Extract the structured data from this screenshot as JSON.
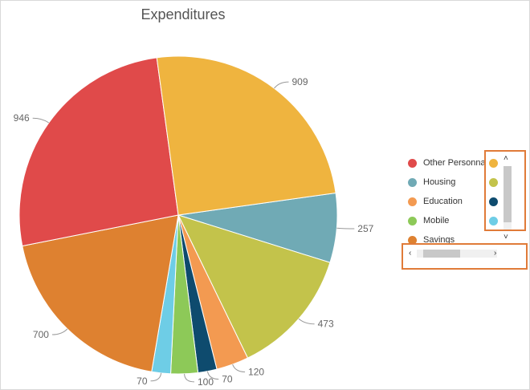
{
  "chart_data": {
    "type": "pie",
    "title": "Expenditures",
    "start_angle_deg": -8,
    "direction": "clockwise",
    "slices": [
      {
        "label": "Housing",
        "value": 257,
        "color": "#70aab5"
      },
      {
        "label": "",
        "value": 473,
        "color": "#c3c34b"
      },
      {
        "label": "Education",
        "value": 120,
        "color": "#f39a51"
      },
      {
        "label": "",
        "value": 70,
        "color": "#0e4b6e"
      },
      {
        "label": "Mobile",
        "value": 100,
        "color": "#8dc958"
      },
      {
        "label": "",
        "value": 70,
        "color": "#6ecde6"
      },
      {
        "label": "Savings",
        "value": 700,
        "color": "#de8130"
      },
      {
        "label": "Other Personnal",
        "value": 946,
        "color": "#e04a4a"
      },
      {
        "label": "",
        "value": 909,
        "color": "#efb43f"
      }
    ],
    "data_labels": [
      "257",
      "473",
      "120",
      "70",
      "100",
      "70",
      "700",
      "946",
      "909"
    ]
  },
  "legend": {
    "items": [
      {
        "label": "Other Personnal",
        "color": "#e04a4a"
      },
      {
        "label": "Housing",
        "color": "#70aab5"
      },
      {
        "label": "Education",
        "color": "#f39a51"
      },
      {
        "label": "Mobile",
        "color": "#8dc958"
      },
      {
        "label": "Savings",
        "color": "#de8130"
      }
    ],
    "overflow_dots": [
      "#efb43f",
      "#c3c34b",
      "#0e4b6e",
      "#6ecde6"
    ],
    "scroll_up_icon": "chevron-up-icon",
    "scroll_down_icon": "chevron-down-icon",
    "scroll_left_icon": "chevron-left-icon",
    "scroll_right_icon": "chevron-right-icon",
    "highlight_color": "#e07b39"
  }
}
